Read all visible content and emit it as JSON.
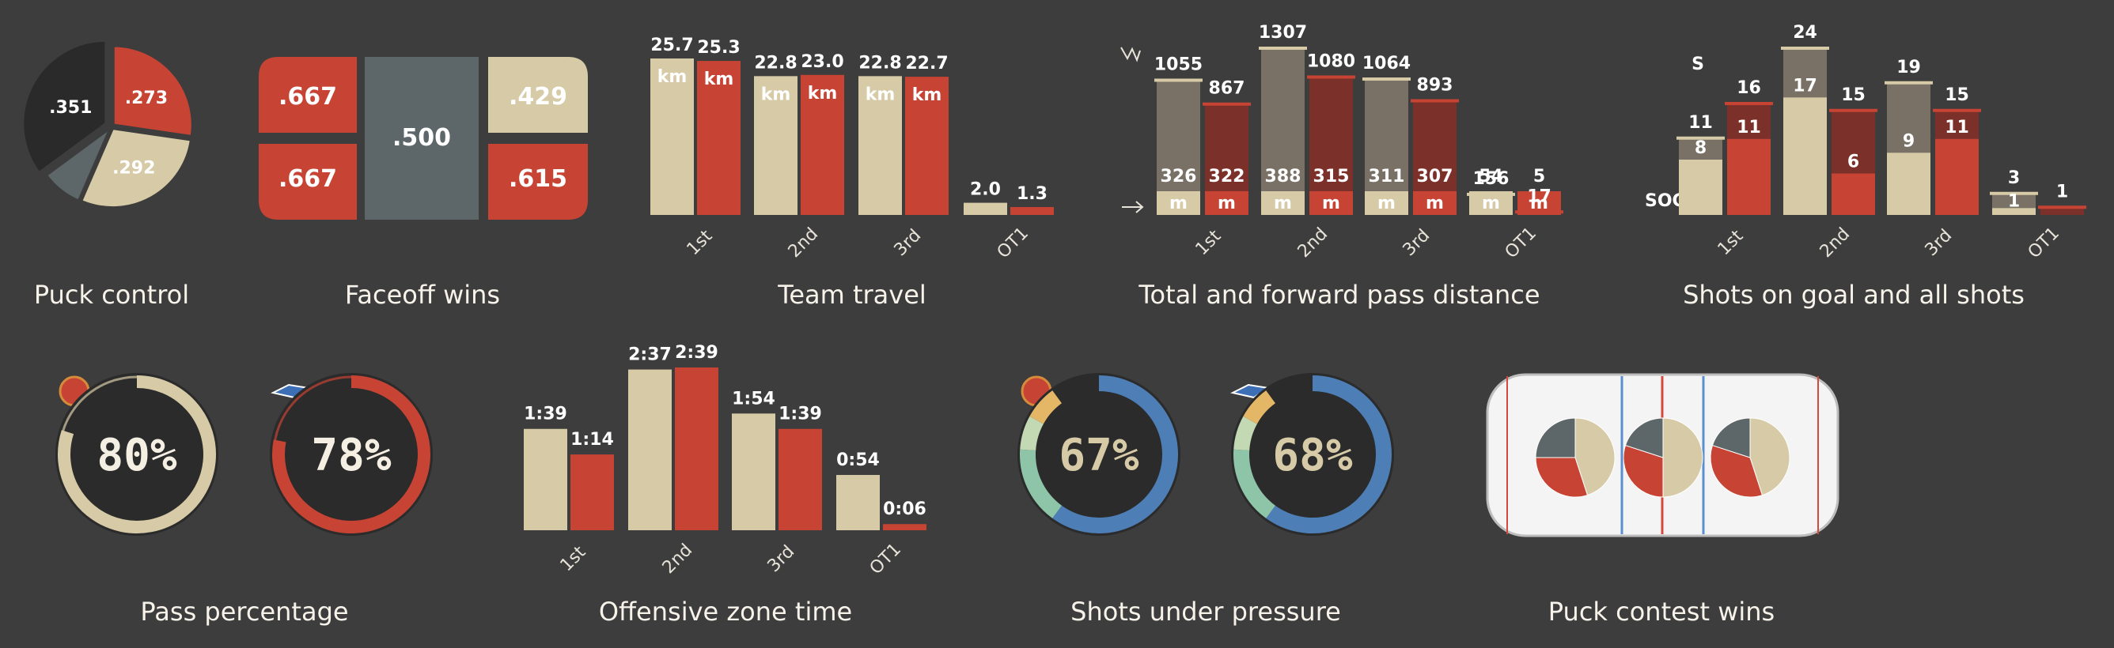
{
  "colors": {
    "home": "#d6cba6",
    "away": "#c74434",
    "dark": "#2a2a2a",
    "gray": "#5d6769",
    "bg": "#3d3d3d",
    "brown": "#7a7166",
    "darkred": "#7b3029",
    "blue": "#4d7fb6",
    "yellow": "#e3b765",
    "teal": "#8ec4a8",
    "mint": "#c3d9b4"
  },
  "chart_data": [
    {
      "id": "puck_control",
      "type": "pie",
      "title": "Puck control",
      "slices": [
        {
          "value": 0.273,
          "label": ".273",
          "color": "away"
        },
        {
          "value": 0.292,
          "label": ".292",
          "color": "home"
        },
        {
          "value": 0.084,
          "label": "",
          "color": "gray"
        },
        {
          "value": 0.351,
          "label": ".351",
          "color": "dark"
        }
      ]
    },
    {
      "id": "faceoff_wins",
      "type": "table",
      "title": "Faceoff wins",
      "cells": [
        ".667",
        ".500",
        ".429",
        ".667",
        ".615"
      ]
    },
    {
      "id": "team_travel",
      "type": "bar",
      "title": "Team travel",
      "categories": [
        "1st",
        "2nd",
        "3rd",
        "OT1"
      ],
      "series": [
        {
          "values": [
            25.7,
            22.8,
            22.8,
            2.0
          ]
        },
        {
          "values": [
            25.3,
            23.0,
            22.7,
            1.3
          ]
        }
      ],
      "labels": [
        [
          "25.7",
          "22.8",
          "22.8",
          "2.0"
        ],
        [
          "25.3",
          "23.0",
          "22.7",
          "1.3"
        ]
      ],
      "unit": "km"
    },
    {
      "id": "pass_distance",
      "type": "bar",
      "title": "Total and forward pass distance",
      "categories": [
        "1st",
        "2nd",
        "3rd",
        "OT1"
      ],
      "series": [
        {
          "total": [
            1055,
            1307,
            1064,
            156
          ],
          "forward": [
            326,
            388,
            311,
            54
          ]
        },
        {
          "total": [
            867,
            1080,
            893,
            17
          ],
          "forward": [
            322,
            315,
            307,
            5
          ]
        }
      ],
      "unit": "m"
    },
    {
      "id": "shots",
      "type": "bar",
      "title": "Shots on goal and all shots",
      "categories": [
        "1st",
        "2nd",
        "3rd",
        "OT1"
      ],
      "series": [
        {
          "shots": [
            11,
            24,
            19,
            3
          ],
          "sog": [
            8,
            17,
            9,
            1
          ]
        },
        {
          "shots": [
            16,
            15,
            15,
            1
          ],
          "sog": [
            11,
            6,
            11,
            0
          ]
        }
      ],
      "labels": {
        "s": "S",
        "sog": "SOG"
      }
    },
    {
      "id": "pass_pct",
      "type": "pie",
      "title": "Pass percentage",
      "values": [
        80,
        78
      ],
      "labels": [
        "80%",
        "78%"
      ]
    },
    {
      "id": "oz_time",
      "type": "bar",
      "title": "Offensive zone time",
      "categories": [
        "1st",
        "2nd",
        "3rd",
        "OT1"
      ],
      "series": [
        {
          "values": [
            99,
            157,
            114,
            54
          ],
          "labels": [
            "1:39",
            "2:37",
            "1:54",
            "0:54"
          ]
        },
        {
          "values": [
            74,
            159,
            99,
            6
          ],
          "labels": [
            "1:14",
            "2:39",
            "1:39",
            "0:06"
          ]
        }
      ]
    },
    {
      "id": "shots_pressure",
      "type": "pie",
      "title": "Shots under pressure",
      "values": [
        67,
        68
      ],
      "labels": [
        "67%",
        "68%"
      ]
    },
    {
      "id": "puck_contest",
      "type": "pie",
      "title": "Puck contest wins",
      "pies": [
        [
          0.45,
          0.3,
          0.25
        ],
        [
          0.5,
          0.3,
          0.2
        ],
        [
          0.45,
          0.35,
          0.2
        ]
      ]
    }
  ],
  "teams": {
    "home_logo": "GRIZZLYS",
    "away_logo": "WILD WINGS"
  },
  "icons": [
    "direction-icon",
    "arrow-right-icon"
  ]
}
